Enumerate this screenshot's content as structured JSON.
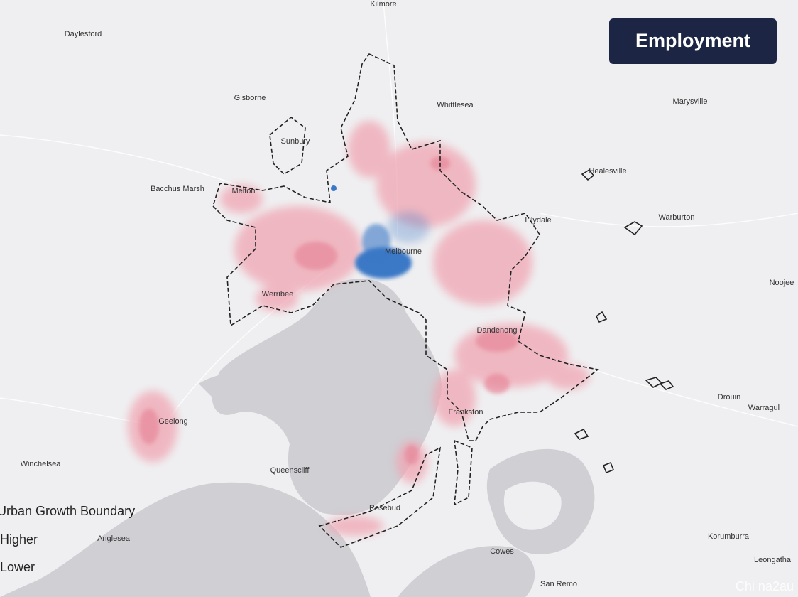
{
  "badge": "Employment",
  "places": [
    "Kilmore",
    "Daylesford",
    "Gisborne",
    "Whittlesea",
    "Marysville",
    "Sunbury",
    "Healesville",
    "Bacchus Marsh",
    "Melton",
    "Lilydale",
    "Warburton",
    "Melbourne",
    "Noojee",
    "Werribee",
    "Dandenong",
    "Drouin",
    "Warragul",
    "Geelong",
    "Frankston",
    "Winchelsea",
    "Queenscliff",
    "Rosebud",
    "Korumburra",
    "Anglesea",
    "Cowes",
    "Leongatha",
    "San Remo"
  ],
  "legend": {
    "boundary": "Urban Growth Boundary",
    "higher": "Higher",
    "lower": "Lower"
  },
  "watermark": "Chi na2au"
}
